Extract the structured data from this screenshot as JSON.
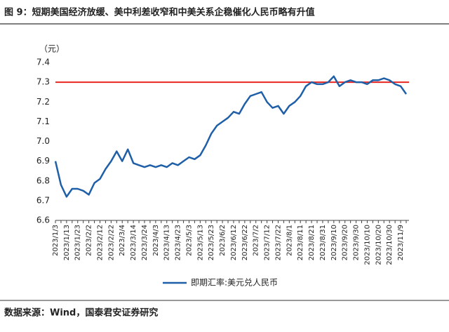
{
  "chart_data": {
    "type": "line",
    "title": "图 9：短期美国经济放缓、美中利差收窄和中美关系企稳催化人民币略有升值",
    "y_unit": "（元）",
    "source": "数据来源：Wind，国泰君安证券研究",
    "categories": [
      "2023/1/3",
      null,
      "2023/1/13",
      null,
      "2023/1/23",
      null,
      "2023/2/2",
      null,
      "2023/2/12",
      null,
      "2023/2/22",
      null,
      "2023/3/4",
      null,
      "2023/3/14",
      null,
      "2023/3/24",
      null,
      "2023/4/3",
      null,
      "2023/4/13",
      null,
      "2023/4/23",
      null,
      "2023/5/3",
      null,
      "2023/5/13",
      null,
      "2023/5/23",
      null,
      "2023/6/2",
      null,
      "2023/6/12",
      null,
      "2023/6/22",
      null,
      "2023/7/2",
      null,
      "2023/7/12",
      null,
      "2023/7/22",
      null,
      "2023/8/1",
      null,
      "2023/8/11",
      null,
      "2023/8/21",
      null,
      "2023/8/31",
      null,
      "2023/9/10",
      null,
      "2023/9/20",
      null,
      "2023/9/30",
      null,
      "2023/10/10",
      null,
      "2023/10/20",
      null,
      "2023/10/30",
      null,
      "2023/11/9",
      null
    ],
    "series": [
      {
        "name": "即期汇率:美元兑人民币",
        "color": "#1f5fa8",
        "values": [
          6.9,
          6.78,
          6.72,
          6.76,
          6.76,
          6.75,
          6.73,
          6.79,
          6.81,
          6.86,
          6.9,
          6.95,
          6.9,
          6.96,
          6.89,
          6.88,
          6.87,
          6.88,
          6.87,
          6.88,
          6.87,
          6.89,
          6.88,
          6.9,
          6.92,
          6.91,
          6.93,
          6.98,
          7.04,
          7.08,
          7.1,
          7.12,
          7.15,
          7.14,
          7.19,
          7.23,
          7.24,
          7.25,
          7.2,
          7.17,
          7.18,
          7.14,
          7.18,
          7.2,
          7.23,
          7.28,
          7.3,
          7.29,
          7.29,
          7.3,
          7.33,
          7.28,
          7.3,
          7.31,
          7.3,
          7.3,
          7.29,
          7.31,
          7.31,
          7.32,
          7.31,
          7.29,
          7.28,
          7.24
        ]
      }
    ],
    "reference_line": {
      "value": 7.3,
      "color": "#e8251f"
    },
    "ylim": [
      6.6,
      7.4
    ],
    "yticks": [
      6.6,
      6.7,
      6.8,
      6.9,
      {
        "value": 7.0,
        "label": "7.0"
      },
      7.1,
      7.2,
      7.3,
      7.4
    ],
    "grid": false
  }
}
